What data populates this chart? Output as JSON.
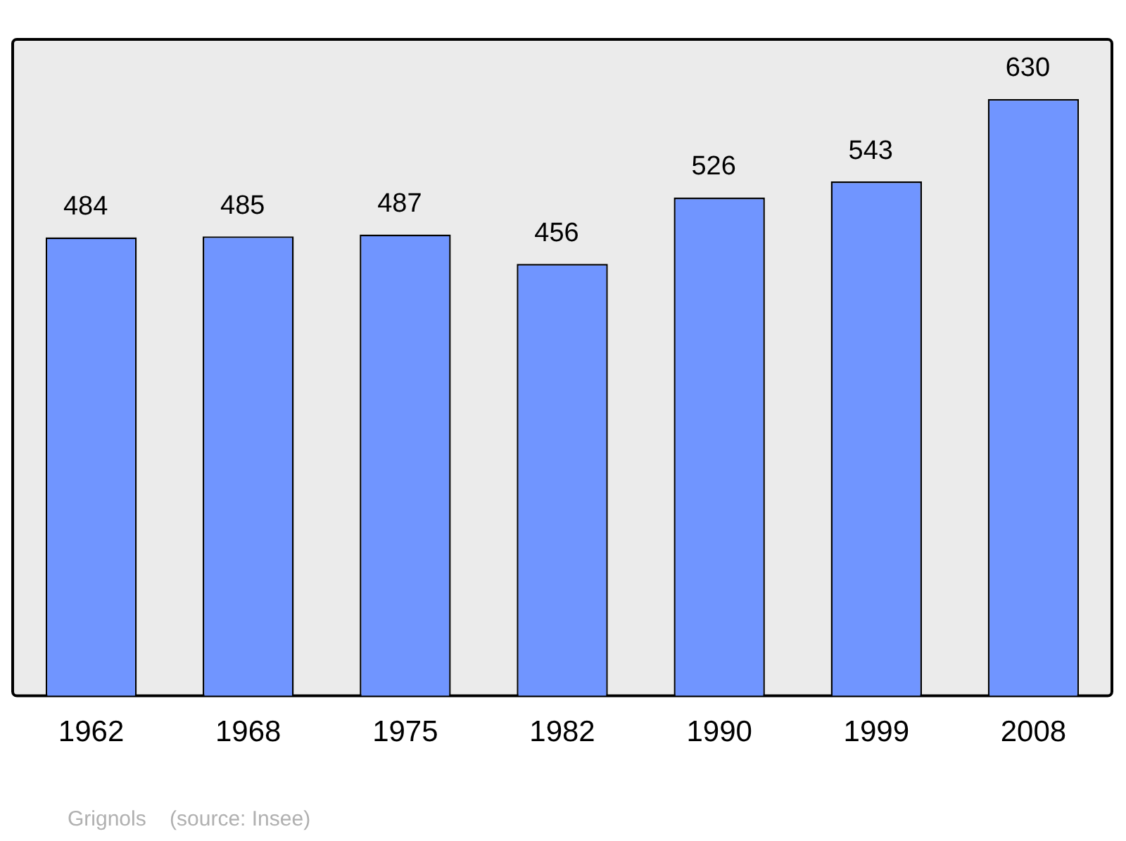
{
  "chart_data": {
    "type": "bar",
    "categories": [
      "1962",
      "1968",
      "1975",
      "1982",
      "1990",
      "1999",
      "2008"
    ],
    "values": [
      484,
      485,
      487,
      456,
      526,
      543,
      630
    ],
    "color": "#7095ff",
    "data_labels": true,
    "grid": false,
    "legend": false,
    "annotations": [
      "Grignols    (source: Insee)"
    ]
  }
}
